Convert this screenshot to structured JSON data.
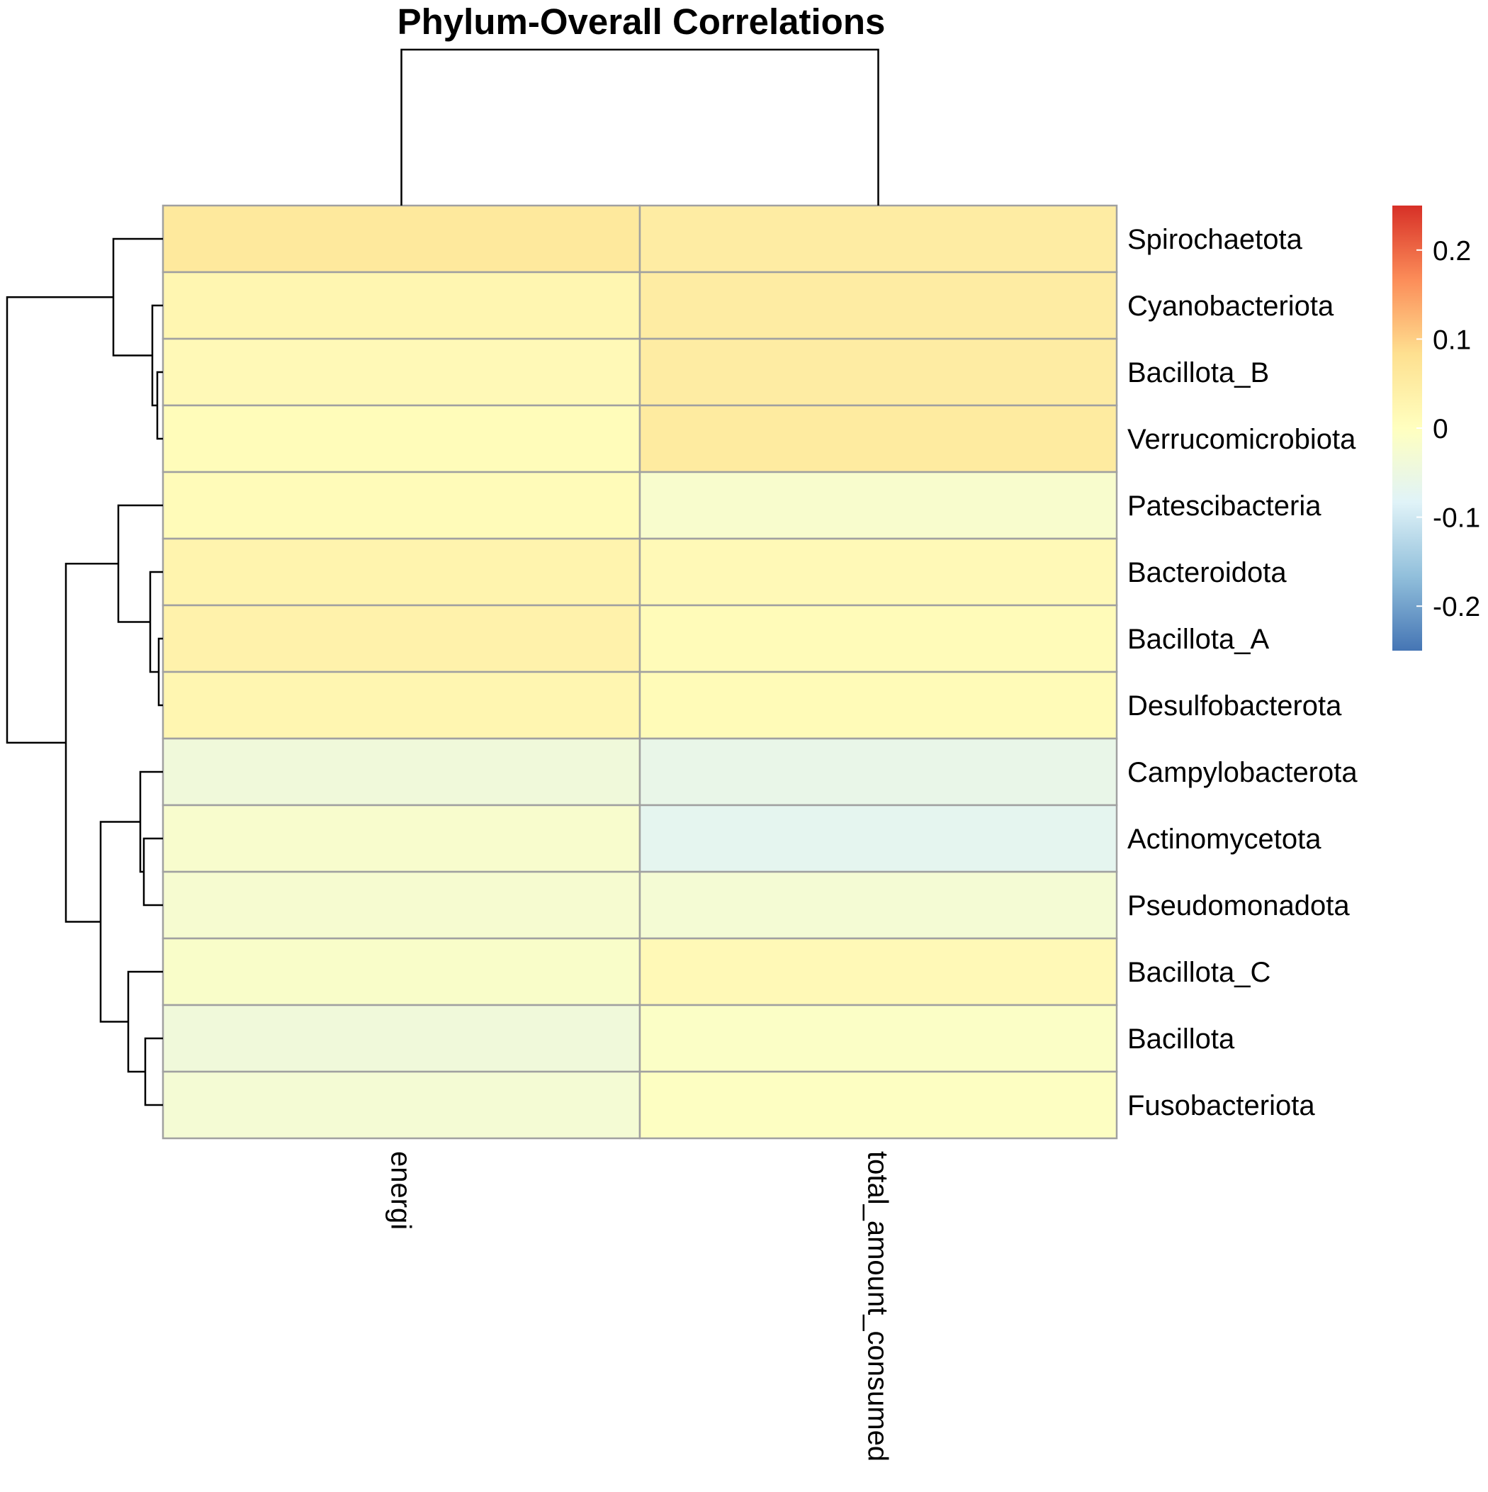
{
  "chart_data": {
    "type": "heatmap",
    "title": "Phylum-Overall Correlations",
    "columns": [
      "energi",
      "total_amount_consumed"
    ],
    "rows": [
      "Spirochaetota",
      "Cyanobacteriota",
      "Bacillota_B",
      "Verrucomicrobiota",
      "Patescibacteria",
      "Bacteroidota",
      "Bacillota_A",
      "Desulfobacterota",
      "Campylobacterota",
      "Actinomycetota",
      "Pseudomonadota",
      "Bacillota_C",
      "Bacillota",
      "Fusobacteriota"
    ],
    "values": [
      [
        0.06,
        0.05
      ],
      [
        0.025,
        0.05
      ],
      [
        0.015,
        0.05
      ],
      [
        0.008,
        0.055
      ],
      [
        0.01,
        -0.02
      ],
      [
        0.03,
        0.015
      ],
      [
        0.035,
        0.01
      ],
      [
        0.025,
        0.012
      ],
      [
        -0.04,
        -0.06
      ],
      [
        -0.02,
        -0.07
      ],
      [
        -0.025,
        -0.03
      ],
      [
        -0.015,
        0.015
      ],
      [
        -0.04,
        -0.01
      ],
      [
        -0.03,
        -0.005
      ]
    ],
    "color_scale": {
      "min": -0.25,
      "max": 0.25,
      "stops": [
        "#4575B4",
        "#91BFDB",
        "#E0F3F8",
        "#FFFFBF",
        "#FEE090",
        "#FC8D59",
        "#D73027"
      ],
      "ticks": [
        0.2,
        0.1,
        0,
        -0.1,
        -0.2
      ],
      "tick_labels": [
        "0.2",
        "0.1",
        "0",
        "-0.1",
        "-0.2"
      ]
    },
    "legend_position": "right",
    "column_dendrogram": true,
    "row_dendrogram": true,
    "cell_border_color": "#A0A0A0"
  }
}
